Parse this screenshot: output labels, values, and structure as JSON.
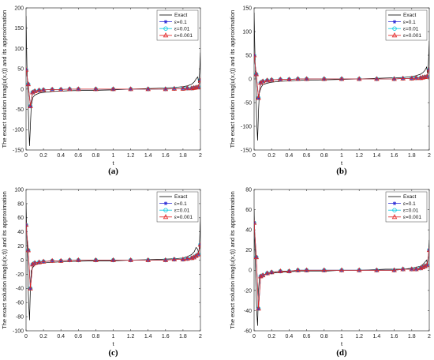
{
  "chart_data": [
    {
      "type": "line",
      "caption": "(a)",
      "xlabel": "t",
      "ylabel": "The exact solution imag(u(x,t)) and its approximation",
      "xlim": [
        0,
        2
      ],
      "ylim": [
        -150,
        200
      ],
      "xticks": [
        "0",
        "0.2",
        "0.4",
        "0.6",
        "0.8",
        "1",
        "1.2",
        "1.4",
        "1.6",
        "1.8",
        "2"
      ],
      "yticks": [
        -150,
        -100,
        -50,
        0,
        50,
        100,
        150,
        200
      ],
      "legend_position": "top-right",
      "series": [
        {
          "name": "Exact",
          "color": "#000000",
          "marker": "none",
          "x": [
            0,
            0.01,
            0.02,
            0.03,
            0.04,
            0.05,
            0.06,
            0.08,
            0.1,
            0.15,
            0.2,
            0.3,
            0.5,
            0.8,
            1.0,
            1.2,
            1.5,
            1.7,
            1.8,
            1.85,
            1.9,
            1.93,
            1.95,
            1.97,
            1.98,
            1.99,
            2.0
          ],
          "y": [
            180,
            60,
            -10,
            -80,
            -140,
            -90,
            -40,
            -20,
            -15,
            -10,
            -8,
            -6,
            -4,
            -3,
            -2,
            0,
            2,
            4,
            6,
            8,
            12,
            18,
            25,
            30,
            15,
            40,
            90
          ]
        },
        {
          "name": "ε=0.1",
          "color": "#2b2bd6",
          "marker": "star",
          "x": [
            0,
            0.025,
            0.05,
            0.075,
            0.1,
            0.15,
            0.2,
            0.3,
            0.4,
            0.5,
            0.6,
            0.8,
            1.0,
            1.2,
            1.4,
            1.6,
            1.7,
            1.8,
            1.85,
            1.9,
            1.925,
            1.95,
            1.975,
            2.0
          ],
          "y": [
            48,
            12,
            -42,
            -8,
            -5,
            -3,
            -2,
            -1,
            -1,
            0,
            0,
            0,
            0,
            0,
            0,
            0,
            1,
            1,
            2,
            2,
            3,
            4,
            5,
            22
          ]
        },
        {
          "name": "ε=0.01",
          "color": "#00c8e0",
          "marker": "circle",
          "x": [
            0,
            0.025,
            0.05,
            0.075,
            0.1,
            0.15,
            0.2,
            0.3,
            0.4,
            0.5,
            0.6,
            0.8,
            1.0,
            1.2,
            1.4,
            1.6,
            1.7,
            1.8,
            1.85,
            1.9,
            1.925,
            1.95,
            1.975,
            2.0
          ],
          "y": [
            48,
            12,
            -42,
            -8,
            -5,
            -3,
            -2,
            -1,
            -1,
            0,
            0,
            0,
            0,
            0,
            0,
            0,
            1,
            1,
            2,
            2,
            3,
            4,
            5,
            22
          ]
        },
        {
          "name": "ε=0.001",
          "color": "#e02020",
          "marker": "triangle",
          "x": [
            0,
            0.025,
            0.05,
            0.075,
            0.1,
            0.15,
            0.2,
            0.3,
            0.4,
            0.5,
            0.6,
            0.8,
            1.0,
            1.2,
            1.4,
            1.6,
            1.7,
            1.8,
            1.85,
            1.9,
            1.925,
            1.95,
            1.975,
            2.0
          ],
          "y": [
            48,
            12,
            -42,
            -8,
            -5,
            -3,
            -2,
            -1,
            -1,
            0,
            0,
            0,
            0,
            0,
            0,
            0,
            1,
            1,
            2,
            2,
            3,
            4,
            5,
            22
          ]
        }
      ]
    },
    {
      "type": "line",
      "caption": "(b)",
      "xlabel": "t",
      "ylabel": "The exact solution imag(u(x,t)) and its approximation",
      "xlim": [
        0,
        2
      ],
      "ylim": [
        -150,
        150
      ],
      "xticks": [
        "0",
        "0.2",
        "0.4",
        "0.6",
        "0.8",
        "1",
        "1.2",
        "1.4",
        "1.6",
        "1.8",
        "2"
      ],
      "yticks": [
        -150,
        -100,
        -50,
        0,
        50,
        100,
        150
      ],
      "legend_position": "top-right",
      "series": [
        {
          "name": "Exact",
          "color": "#000000",
          "marker": "none",
          "x": [
            0,
            0.01,
            0.02,
            0.03,
            0.04,
            0.05,
            0.06,
            0.08,
            0.1,
            0.15,
            0.2,
            0.3,
            0.5,
            0.8,
            1.0,
            1.2,
            1.5,
            1.7,
            1.8,
            1.85,
            1.9,
            1.93,
            1.95,
            1.97,
            1.98,
            1.99,
            2.0
          ],
          "y": [
            140,
            50,
            -20,
            -90,
            -130,
            -70,
            -30,
            -18,
            -12,
            -9,
            -7,
            -5,
            -3,
            -2,
            -1,
            0,
            2,
            3,
            5,
            7,
            10,
            14,
            18,
            25,
            12,
            30,
            80
          ]
        },
        {
          "name": "ε=0.1",
          "color": "#2b2bd6",
          "marker": "star",
          "x": [
            0,
            0.025,
            0.05,
            0.075,
            0.1,
            0.15,
            0.2,
            0.3,
            0.4,
            0.5,
            0.6,
            0.8,
            1.0,
            1.2,
            1.4,
            1.6,
            1.7,
            1.8,
            1.85,
            1.9,
            1.925,
            1.95,
            1.975,
            2.0
          ],
          "y": [
            50,
            10,
            -40,
            -8,
            -5,
            -3,
            -2,
            -1,
            -1,
            0,
            0,
            0,
            0,
            0,
            0,
            0,
            1,
            1,
            2,
            2,
            3,
            4,
            5,
            20
          ]
        },
        {
          "name": "ε=0.01",
          "color": "#00c8e0",
          "marker": "circle",
          "x": [
            0,
            0.025,
            0.05,
            0.075,
            0.1,
            0.15,
            0.2,
            0.3,
            0.4,
            0.5,
            0.6,
            0.8,
            1.0,
            1.2,
            1.4,
            1.6,
            1.7,
            1.8,
            1.85,
            1.9,
            1.925,
            1.95,
            1.975,
            2.0
          ],
          "y": [
            50,
            10,
            -40,
            -8,
            -5,
            -3,
            -2,
            -1,
            -1,
            0,
            0,
            0,
            0,
            0,
            0,
            0,
            1,
            1,
            2,
            2,
            3,
            4,
            5,
            20
          ]
        },
        {
          "name": "ε=0.001",
          "color": "#e02020",
          "marker": "triangle",
          "x": [
            0,
            0.025,
            0.05,
            0.075,
            0.1,
            0.15,
            0.2,
            0.3,
            0.4,
            0.5,
            0.6,
            0.8,
            1.0,
            1.2,
            1.4,
            1.6,
            1.7,
            1.8,
            1.85,
            1.9,
            1.925,
            1.95,
            1.975,
            2.0
          ],
          "y": [
            50,
            10,
            -40,
            -8,
            -5,
            -3,
            -2,
            -1,
            -1,
            0,
            0,
            0,
            0,
            0,
            0,
            0,
            1,
            1,
            2,
            2,
            3,
            4,
            5,
            20
          ]
        }
      ]
    },
    {
      "type": "line",
      "caption": "(c)",
      "xlabel": "t",
      "ylabel": "The exact solution imag(u(x,t)) and its approximation",
      "xlim": [
        0,
        2
      ],
      "ylim": [
        -100,
        100
      ],
      "xticks": [
        "0",
        "0.2",
        "0.4",
        "0.6",
        "0.8",
        "1",
        "1.2",
        "1.4",
        "1.6",
        "1.8",
        "2"
      ],
      "yticks": [
        -100,
        -80,
        -60,
        -40,
        -20,
        0,
        20,
        40,
        60,
        80,
        100
      ],
      "legend_position": "top-right",
      "series": [
        {
          "name": "Exact",
          "color": "#000000",
          "marker": "none",
          "x": [
            0,
            0.01,
            0.02,
            0.03,
            0.04,
            0.05,
            0.06,
            0.08,
            0.1,
            0.15,
            0.2,
            0.3,
            0.5,
            0.8,
            1.0,
            1.2,
            1.5,
            1.7,
            1.8,
            1.85,
            1.9,
            1.93,
            1.95,
            1.97,
            1.98,
            1.99,
            2.0
          ],
          "y": [
            80,
            30,
            -20,
            -60,
            -85,
            -40,
            -15,
            -10,
            -7,
            -5,
            -4,
            -3,
            -2,
            -1,
            -1,
            0,
            1,
            2,
            3,
            5,
            8,
            12,
            18,
            15,
            8,
            25,
            60
          ]
        },
        {
          "name": "ε=0.1",
          "color": "#2b2bd6",
          "marker": "star",
          "x": [
            0,
            0.025,
            0.05,
            0.075,
            0.1,
            0.15,
            0.2,
            0.3,
            0.4,
            0.5,
            0.6,
            0.8,
            1.0,
            1.2,
            1.4,
            1.6,
            1.7,
            1.8,
            1.85,
            1.9,
            1.925,
            1.95,
            1.975,
            2.0
          ],
          "y": [
            50,
            14,
            -40,
            -6,
            -4,
            -3,
            -2,
            -1,
            -1,
            0,
            0,
            0,
            0,
            0,
            0,
            0,
            1,
            1,
            2,
            3,
            4,
            6,
            8,
            22
          ]
        },
        {
          "name": "ε=0.01",
          "color": "#00c8e0",
          "marker": "circle",
          "x": [
            0,
            0.025,
            0.05,
            0.075,
            0.1,
            0.15,
            0.2,
            0.3,
            0.4,
            0.5,
            0.6,
            0.8,
            1.0,
            1.2,
            1.4,
            1.6,
            1.7,
            1.8,
            1.85,
            1.9,
            1.925,
            1.95,
            1.975,
            2.0
          ],
          "y": [
            50,
            14,
            -40,
            -6,
            -4,
            -3,
            -2,
            -1,
            -1,
            0,
            0,
            0,
            0,
            0,
            0,
            0,
            1,
            1,
            2,
            3,
            4,
            6,
            8,
            22
          ]
        },
        {
          "name": "ε=0.001",
          "color": "#e02020",
          "marker": "triangle",
          "x": [
            0,
            0.025,
            0.05,
            0.075,
            0.1,
            0.15,
            0.2,
            0.3,
            0.4,
            0.5,
            0.6,
            0.8,
            1.0,
            1.2,
            1.4,
            1.6,
            1.7,
            1.8,
            1.85,
            1.9,
            1.925,
            1.95,
            1.975,
            2.0
          ],
          "y": [
            50,
            14,
            -40,
            -6,
            -4,
            -3,
            -2,
            -1,
            -1,
            0,
            0,
            0,
            0,
            0,
            0,
            0,
            1,
            1,
            2,
            3,
            4,
            6,
            8,
            22
          ]
        }
      ]
    },
    {
      "type": "line",
      "caption": "(d)",
      "xlabel": "t",
      "ylabel": "The exact solution imag(u(x,t)) and its approximation",
      "xlim": [
        0,
        2
      ],
      "ylim": [
        -60,
        80
      ],
      "xticks": [
        "0",
        "0.2",
        "0.4",
        "0.6",
        "0.8",
        "1",
        "1.2",
        "1.4",
        "1.6",
        "1.8",
        "2"
      ],
      "yticks": [
        -60,
        -40,
        -20,
        0,
        20,
        40,
        60,
        80
      ],
      "legend_position": "top-right",
      "series": [
        {
          "name": "Exact",
          "color": "#000000",
          "marker": "none",
          "x": [
            0,
            0.01,
            0.02,
            0.03,
            0.04,
            0.05,
            0.06,
            0.08,
            0.1,
            0.15,
            0.2,
            0.3,
            0.5,
            0.8,
            1.0,
            1.2,
            1.5,
            1.7,
            1.8,
            1.85,
            1.9,
            1.93,
            1.95,
            1.97,
            1.98,
            1.99,
            2.0
          ],
          "y": [
            60,
            20,
            -15,
            -40,
            -55,
            -20,
            -8,
            -6,
            -5,
            -4,
            -3,
            -2,
            -1,
            -1,
            0,
            0,
            1,
            1,
            2,
            3,
            4,
            6,
            8,
            10,
            5,
            12,
            30
          ]
        },
        {
          "name": "ε=0.1",
          "color": "#2b2bd6",
          "marker": "star",
          "x": [
            0,
            0.025,
            0.05,
            0.075,
            0.1,
            0.15,
            0.2,
            0.3,
            0.4,
            0.5,
            0.6,
            0.8,
            1.0,
            1.2,
            1.4,
            1.6,
            1.7,
            1.8,
            1.85,
            1.9,
            1.925,
            1.95,
            1.975,
            2.0
          ],
          "y": [
            47,
            13,
            -38,
            -6,
            -5,
            -3,
            -2,
            -1,
            -1,
            0,
            0,
            0,
            0,
            0,
            0,
            0,
            1,
            1,
            1,
            2,
            3,
            4,
            5,
            20
          ]
        },
        {
          "name": "ε=0.01",
          "color": "#00c8e0",
          "marker": "circle",
          "x": [
            0,
            0.025,
            0.05,
            0.075,
            0.1,
            0.15,
            0.2,
            0.3,
            0.4,
            0.5,
            0.6,
            0.8,
            1.0,
            1.2,
            1.4,
            1.6,
            1.7,
            1.8,
            1.85,
            1.9,
            1.925,
            1.95,
            1.975,
            2.0
          ],
          "y": [
            47,
            13,
            -38,
            -6,
            -5,
            -3,
            -2,
            -1,
            -1,
            0,
            0,
            0,
            0,
            0,
            0,
            0,
            1,
            1,
            1,
            2,
            3,
            4,
            5,
            20
          ]
        },
        {
          "name": "ε=0.001",
          "color": "#e02020",
          "marker": "triangle",
          "x": [
            0,
            0.025,
            0.05,
            0.075,
            0.1,
            0.15,
            0.2,
            0.3,
            0.4,
            0.5,
            0.6,
            0.8,
            1.0,
            1.2,
            1.4,
            1.6,
            1.7,
            1.8,
            1.85,
            1.9,
            1.925,
            1.95,
            1.975,
            2.0
          ],
          "y": [
            47,
            13,
            -38,
            -6,
            -5,
            -3,
            -2,
            -1,
            -1,
            0,
            0,
            0,
            0,
            0,
            0,
            0,
            1,
            1,
            1,
            2,
            3,
            4,
            5,
            20
          ]
        }
      ]
    }
  ]
}
